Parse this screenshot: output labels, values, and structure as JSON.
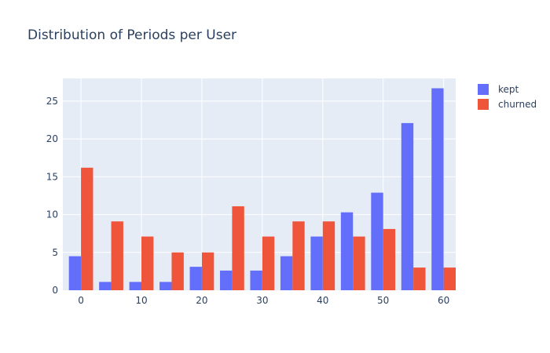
{
  "chart_data": {
    "type": "bar",
    "title": "Distribution of Periods per User",
    "xlabel": "",
    "ylabel": "",
    "x": [
      0,
      5,
      10,
      15,
      20,
      25,
      30,
      35,
      40,
      45,
      50,
      55,
      60
    ],
    "xlim": [
      -3,
      62
    ],
    "ylim": [
      0,
      28
    ],
    "xticks": [
      0,
      10,
      20,
      30,
      40,
      50,
      60
    ],
    "yticks": [
      0,
      5,
      10,
      15,
      20,
      25
    ],
    "grid": true,
    "legend_position": "top-right",
    "series": [
      {
        "name": "kept",
        "color": "#636efa",
        "values": [
          4.5,
          1.1,
          1.1,
          1.1,
          3.1,
          2.6,
          2.6,
          4.5,
          7.1,
          10.3,
          12.9,
          22.1,
          26.7
        ]
      },
      {
        "name": "churned",
        "color": "#ef553b",
        "values": [
          16.2,
          9.1,
          7.1,
          5.0,
          5.0,
          11.1,
          7.1,
          9.1,
          9.1,
          7.1,
          8.1,
          3.0,
          3.0
        ]
      }
    ],
    "colors": {
      "plot_background": "#e5ecf6",
      "grid": "#ffffff",
      "text": "#2a3f5f"
    }
  }
}
